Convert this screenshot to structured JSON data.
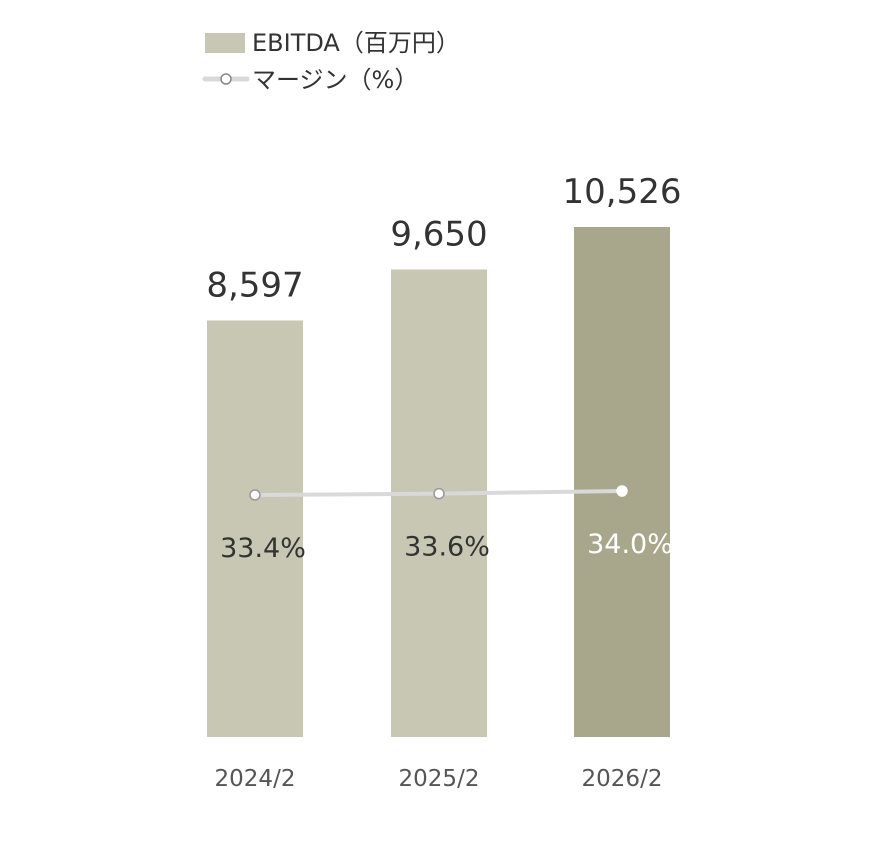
{
  "chart_data": {
    "type": "bar",
    "categories": [
      "2024/2",
      "2025/2",
      "2026/2"
    ],
    "series": [
      {
        "name": "EBITDA（百万円）",
        "kind": "bar",
        "values": [
          8597,
          9650,
          10526
        ],
        "labels": [
          "8,597",
          "9,650",
          "10,526"
        ],
        "colors": [
          "#c8c7b3",
          "#c8c7b3",
          "#a8a78b"
        ]
      },
      {
        "name": "マージン（%）",
        "kind": "line",
        "values": [
          33.4,
          33.6,
          34.0
        ],
        "labels": [
          "33.4%",
          "33.6%",
          "34.0%"
        ],
        "color": "#d9d9d9"
      }
    ],
    "legend_position": "top-left",
    "grid": false
  }
}
